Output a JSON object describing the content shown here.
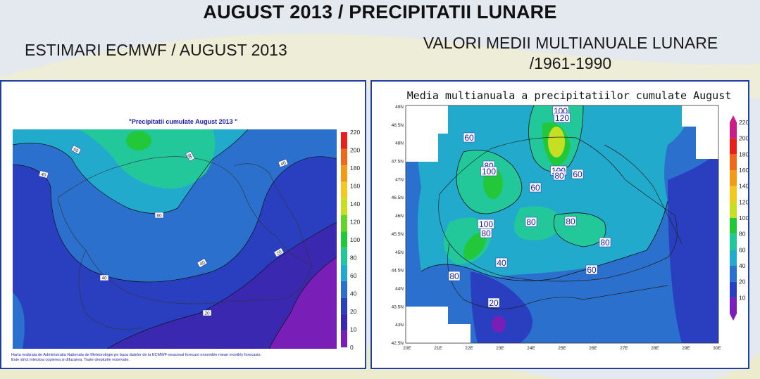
{
  "header": {
    "title": "AUGUST 2013 / PRECIPITATII LUNARE",
    "left_subtitle": "ESTIMARI ECMWF / AUGUST 2013",
    "right_subtitle_line1": "VALORI MEDII MULTIANUALE LUNARE",
    "right_subtitle_line2": "/1961-1990"
  },
  "left_map": {
    "title": "\"Precipitatii cumulate August 2013 \"",
    "colorbar_labels": [
      "220",
      "200",
      "180",
      "160",
      "140",
      "120",
      "100",
      "80",
      "60",
      "40",
      "20",
      "10",
      "0"
    ],
    "colorbar_colors": [
      "#e8201c",
      "#ee6a1a",
      "#f29b1a",
      "#f2c822",
      "#c6df22",
      "#69d22a",
      "#22c83a",
      "#22c89a",
      "#22aacc",
      "#2a70cc",
      "#2a3ec0",
      "#3a28b0",
      "#7a1eb8"
    ],
    "contour_labels": [
      "60",
      "80",
      "40",
      "60",
      "40",
      "40",
      "40",
      "20",
      "20"
    ],
    "footer_line1": "Harta realizata de Administratia Nationala de Meteorologie pe baza datelor de la ECMWF-seasonal forecast ensemble mean monthly forecasts.",
    "footer_line2": "Este strict interzisa copierea si difuzarea. Toate drepturile rezervate."
  },
  "right_map": {
    "title": "Media multianuala a precipitatiilor cumulate August",
    "colorbar_labels": [
      "220",
      "200",
      "180",
      "160",
      "140",
      "120",
      "100",
      "80",
      "60",
      "40",
      "20",
      "10"
    ],
    "colorbar_colors": [
      "#c81e8a",
      "#e8201c",
      "#ee6a1a",
      "#f29b1a",
      "#f2c822",
      "#c6df22",
      "#22c83a",
      "#22c89a",
      "#22aacc",
      "#2a70cc",
      "#2a3ec0",
      "#7a1eb8"
    ],
    "lat_labels": [
      "49N",
      "48.5N",
      "48N",
      "47.5N",
      "47N",
      "46.5N",
      "46N",
      "45.5N",
      "45N",
      "44.5N",
      "44N",
      "43.5N",
      "43N",
      "42.5N"
    ],
    "lon_labels": [
      "20E",
      "21E",
      "22E",
      "23E",
      "24E",
      "25E",
      "26E",
      "27E",
      "28E",
      "29E",
      "30E"
    ],
    "contour_labels": [
      "100",
      "120",
      "60",
      "80",
      "100",
      "100",
      "80",
      "60",
      "60",
      "80",
      "80",
      "80",
      "100",
      "80",
      "80",
      "40",
      "60",
      "20"
    ]
  }
}
